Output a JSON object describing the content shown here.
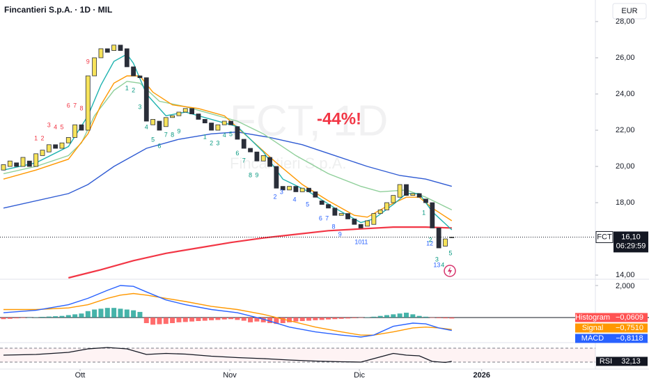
{
  "header": {
    "title": "Fincantieri S.p.A. · 1D · MIL",
    "currency": "EUR"
  },
  "chart_data": [
    {
      "type": "candlestick",
      "watermark_symbol": "FCT, 1D",
      "watermark_name": "Fincantieri S.p.A.",
      "annotation": "-44%!",
      "up_color": "#f7e35a",
      "down_color": "#2a2e39",
      "open": [
        19.8,
        20.0,
        20.2,
        20.0,
        20.3,
        20.0,
        20.6,
        20.8,
        21.2,
        21.0,
        21.3,
        21.6,
        22.3,
        22.0,
        25.0,
        26.0,
        26.5,
        26.4,
        26.7,
        26.5,
        25.5,
        25.0,
        24.9,
        22.3,
        22.5,
        22.2,
        22.7,
        22.8,
        23.0,
        23.2,
        22.9,
        22.6,
        22.4,
        22.0,
        22.3,
        22.5,
        22.2,
        21.5,
        21.0,
        20.8,
        20.3,
        20.5,
        20.0,
        18.9,
        18.7,
        18.9,
        18.6,
        18.8,
        18.6,
        18.1,
        17.9,
        17.7,
        17.3,
        17.4,
        17.1,
        16.8,
        16.7,
        16.8,
        17.4,
        17.6,
        18.0,
        18.3,
        19.0,
        18.4,
        18.5,
        18.2,
        18.0,
        16.6,
        15.6,
        16.1
      ],
      "close": [
        20.1,
        20.3,
        20.0,
        20.5,
        20.0,
        20.7,
        20.9,
        21.2,
        21.0,
        21.3,
        21.6,
        22.3,
        22.0,
        25.0,
        26.0,
        26.5,
        26.3,
        26.7,
        26.4,
        25.5,
        25.0,
        24.9,
        22.5,
        22.6,
        22.0,
        22.7,
        22.8,
        23.0,
        23.2,
        22.9,
        22.6,
        22.4,
        22.0,
        22.3,
        22.5,
        22.3,
        21.5,
        21.0,
        20.8,
        20.3,
        20.6,
        20.0,
        18.8,
        18.7,
        18.9,
        18.6,
        18.8,
        18.6,
        18.3,
        17.9,
        17.7,
        17.3,
        17.4,
        17.1,
        16.8,
        16.6,
        17.0,
        17.4,
        17.6,
        18.0,
        18.4,
        19.0,
        18.4,
        18.5,
        18.3,
        18.0,
        16.6,
        15.5,
        16.0,
        16.1
      ],
      "lines": [
        {
          "color": "#2f5bd3",
          "x": [
            0,
            10,
            13,
            17,
            22,
            27,
            32,
            36,
            41,
            46,
            51,
            56,
            61,
            65,
            69
          ],
          "values": [
            17.7,
            18.5,
            19.0,
            20.0,
            21.0,
            21.5,
            21.8,
            21.9,
            21.6,
            21.2,
            20.6,
            20.0,
            19.5,
            19.3,
            18.9
          ]
        },
        {
          "color": "#f23645",
          "x": [
            10,
            15,
            20,
            25,
            30,
            35,
            40,
            45,
            50,
            55,
            60,
            65,
            69
          ],
          "values": [
            13.85,
            14.3,
            14.8,
            15.2,
            15.5,
            15.8,
            16.05,
            16.25,
            16.45,
            16.55,
            16.65,
            16.65,
            16.6
          ]
        },
        {
          "color": "#8fcf9a",
          "x": [
            0,
            5,
            10,
            12,
            14,
            17,
            19,
            21,
            24,
            28,
            32,
            36,
            40,
            45,
            50,
            55,
            58,
            62,
            65,
            69
          ],
          "values": [
            19.6,
            20.0,
            20.6,
            21.3,
            22.8,
            24.2,
            24.7,
            24.6,
            23.6,
            23.3,
            22.9,
            22.5,
            21.8,
            20.6,
            19.6,
            18.9,
            18.6,
            18.7,
            18.3,
            17.6
          ]
        },
        {
          "color": "#ff9800",
          "x": [
            0,
            5,
            10,
            13,
            15,
            17,
            19,
            21,
            23,
            26,
            30,
            34,
            38,
            42,
            46,
            50,
            54,
            56,
            59,
            62,
            64,
            66,
            69
          ],
          "values": [
            19.3,
            19.8,
            20.4,
            21.8,
            23.4,
            24.6,
            25.0,
            25.0,
            24.1,
            23.4,
            23.2,
            22.8,
            21.5,
            20.2,
            19.0,
            18.1,
            17.3,
            17.2,
            17.8,
            18.3,
            18.3,
            17.7,
            17.0
          ]
        },
        {
          "color": "#1fb3b0",
          "x": [
            0,
            5,
            10,
            13,
            15,
            17,
            19,
            20,
            22,
            25,
            28,
            32,
            36,
            40,
            43,
            47,
            51,
            55,
            57,
            60,
            62,
            64,
            66,
            69
          ],
          "values": [
            19.8,
            20.2,
            21.1,
            22.8,
            24.5,
            25.8,
            26.2,
            25.7,
            24.0,
            22.8,
            23.0,
            22.6,
            22.2,
            20.8,
            19.3,
            18.6,
            17.7,
            16.9,
            17.1,
            17.9,
            18.5,
            18.5,
            17.5,
            16.5
          ]
        }
      ],
      "td_labels": [
        {
          "text": "1",
          "x": 5,
          "y": 21.54,
          "color": "#f23645"
        },
        {
          "text": "2",
          "x": 6,
          "y": 21.54,
          "color": "#f23645"
        },
        {
          "text": "3",
          "x": 7,
          "y": 22.27,
          "color": "#f23645"
        },
        {
          "text": "4",
          "x": 8,
          "y": 22.15,
          "color": "#f23645"
        },
        {
          "text": "5",
          "x": 9,
          "y": 22.15,
          "color": "#f23645"
        },
        {
          "text": "6",
          "x": 10,
          "y": 23.35,
          "color": "#f23645"
        },
        {
          "text": "7",
          "x": 11,
          "y": 23.35,
          "color": "#f23645"
        },
        {
          "text": "8",
          "x": 12,
          "y": 23.19,
          "color": "#f23645"
        },
        {
          "text": "9",
          "x": 13,
          "y": 25.77,
          "color": "#f23645"
        },
        {
          "text": "1",
          "x": 19,
          "y": 24.31,
          "color": "#089981"
        },
        {
          "text": "2",
          "x": 20,
          "y": 24.19,
          "color": "#089981"
        },
        {
          "text": "3",
          "x": 21,
          "y": 23.27,
          "color": "#089981"
        },
        {
          "text": "4",
          "x": 22,
          "y": 22.15,
          "color": "#089981"
        },
        {
          "text": "5",
          "x": 23,
          "y": 21.46,
          "color": "#089981"
        },
        {
          "text": "6",
          "x": 24,
          "y": 21.12,
          "color": "#089981"
        },
        {
          "text": "7",
          "x": 25,
          "y": 21.73,
          "color": "#089981"
        },
        {
          "text": "8",
          "x": 26,
          "y": 21.73,
          "color": "#089981"
        },
        {
          "text": "9",
          "x": 27,
          "y": 21.92,
          "color": "#089981"
        },
        {
          "text": "1",
          "x": 31,
          "y": 21.62,
          "color": "#089981"
        },
        {
          "text": "2",
          "x": 32,
          "y": 21.27,
          "color": "#089981"
        },
        {
          "text": "3",
          "x": 33,
          "y": 21.27,
          "color": "#089981"
        },
        {
          "text": "4",
          "x": 34,
          "y": 21.7,
          "color": "#089981"
        },
        {
          "text": "5",
          "x": 35,
          "y": 21.77,
          "color": "#089981"
        },
        {
          "text": "6",
          "x": 36,
          "y": 20.7,
          "color": "#089981"
        },
        {
          "text": "7",
          "x": 37,
          "y": 20.3,
          "color": "#089981"
        },
        {
          "text": "8",
          "x": 38,
          "y": 19.5,
          "color": "#089981"
        },
        {
          "text": "9",
          "x": 39,
          "y": 19.5,
          "color": "#089981"
        },
        {
          "text": "2",
          "x": 41.8,
          "y": 18.31,
          "color": "#2962ff"
        },
        {
          "text": "3",
          "x": 42.8,
          "y": 18.58,
          "color": "#2962ff"
        },
        {
          "text": "4",
          "x": 44.8,
          "y": 18.15,
          "color": "#2962ff"
        },
        {
          "text": "5",
          "x": 46.8,
          "y": 17.88,
          "color": "#2962ff"
        },
        {
          "text": "6",
          "x": 48.8,
          "y": 17.12,
          "color": "#2962ff"
        },
        {
          "text": "7",
          "x": 49.8,
          "y": 17.12,
          "color": "#2962ff"
        },
        {
          "text": "8",
          "x": 50.8,
          "y": 16.65,
          "color": "#2962ff"
        },
        {
          "text": "9",
          "x": 51.8,
          "y": 16.23,
          "color": "#2962ff"
        },
        {
          "text": "10",
          "x": 54.6,
          "y": 15.81,
          "color": "#2962ff"
        },
        {
          "text": "11",
          "x": 55.6,
          "y": 15.81,
          "color": "#2962ff"
        },
        {
          "text": "12",
          "x": 65.6,
          "y": 15.73,
          "color": "#2962ff"
        },
        {
          "text": "13",
          "x": 66.7,
          "y": 14.54,
          "color": "#2962ff"
        },
        {
          "text": "1",
          "x": 64.7,
          "y": 17.42,
          "color": "#089981"
        },
        {
          "text": "2",
          "x": 65.7,
          "y": 15.92,
          "color": "#089981"
        },
        {
          "text": "3",
          "x": 66.7,
          "y": 14.85,
          "color": "#089981"
        },
        {
          "text": "4",
          "x": 67.6,
          "y": 14.54,
          "color": "#089981"
        },
        {
          "text": "5",
          "x": 68.8,
          "y": 15.19,
          "color": "#089981"
        }
      ],
      "last_price": {
        "symbol": "FCT",
        "value": 16.1,
        "label": "16,10",
        "countdown": "06:29:59"
      },
      "xlim": [
        -0.536,
        91.1
      ],
      "xticks": [
        {
          "value": 11.79,
          "label": "Ott"
        },
        {
          "value": 34.83,
          "label": "Nov"
        },
        {
          "value": 54.77,
          "label": "Dic"
        },
        {
          "value": 73.6,
          "label": "2026"
        }
      ],
      "ylim": [
        13.81,
        29.19
      ],
      "yticks": [
        {
          "value": 14,
          "label": "14,00"
        },
        {
          "value": 16,
          "label": "16,00"
        },
        {
          "value": 18,
          "label": "18,00"
        },
        {
          "value": 20,
          "label": "20,00"
        },
        {
          "value": 22,
          "label": "22,00"
        },
        {
          "value": 24,
          "label": "24,00"
        },
        {
          "value": 26,
          "label": "26,00"
        },
        {
          "value": 28,
          "label": "28,00"
        }
      ]
    },
    {
      "type": "macd",
      "ylim": [
        -1.57,
        2.35
      ],
      "yticks": [
        {
          "value": 2,
          "label": "2,000"
        }
      ],
      "histogram": {
        "name": "Histogram",
        "colors": [
          "#26a69a",
          "#ff5252"
        ],
        "last_label": "−0,0609",
        "values": [
          -0.1,
          -0.08,
          -0.05,
          -0.03,
          0,
          0.02,
          0.04,
          0.06,
          0.08,
          0.1,
          0.15,
          0.2,
          0.25,
          0.4,
          0.5,
          0.55,
          0.6,
          0.6,
          0.55,
          0.5,
          0.45,
          0.35,
          -0.35,
          -0.45,
          -0.42,
          -0.4,
          -0.35,
          -0.3,
          -0.28,
          -0.25,
          -0.22,
          -0.2,
          -0.17,
          -0.15,
          -0.12,
          -0.1,
          -0.15,
          -0.2,
          -0.3,
          -0.25,
          -0.3,
          -0.35,
          -0.4,
          -0.35,
          -0.3,
          -0.25,
          -0.22,
          -0.2,
          -0.17,
          -0.15,
          -0.12,
          -0.1,
          -0.08,
          -0.06,
          -0.04,
          -0.02,
          0.02,
          0.05,
          0.1,
          0.15,
          0.2,
          0.25,
          0.3,
          0.2,
          0.1,
          0.05,
          -0.02,
          -0.04,
          -0.05,
          -0.0609
        ]
      },
      "series": [
        {
          "name": "Signal",
          "color": "#ff9800",
          "last_label": "−0,7510",
          "x": [
            0,
            5,
            10,
            13,
            16,
            18,
            20,
            22,
            25,
            28,
            32,
            36,
            40,
            44,
            48,
            52,
            55,
            57,
            60,
            63,
            65,
            67,
            69
          ],
          "values": [
            0.5,
            0.5,
            0.6,
            0.8,
            1.2,
            1.4,
            1.5,
            1.4,
            1.2,
            1.0,
            0.7,
            0.5,
            0.2,
            -0.2,
            -0.6,
            -0.9,
            -1.1,
            -1.1,
            -0.9,
            -0.65,
            -0.6,
            -0.65,
            -0.751
          ]
        },
        {
          "name": "MACD",
          "color": "#2962ff",
          "last_label": "−0,8118",
          "x": [
            0,
            5,
            10,
            13,
            16,
            18,
            20,
            22,
            25,
            28,
            32,
            36,
            40,
            44,
            48,
            52,
            55,
            57,
            60,
            63,
            65,
            67,
            69
          ],
          "values": [
            0.3,
            0.45,
            0.8,
            1.2,
            1.7,
            2.0,
            1.95,
            1.6,
            1.1,
            0.8,
            0.5,
            0.3,
            -0.1,
            -0.6,
            -0.9,
            -1.1,
            -1.22,
            -1.1,
            -0.55,
            -0.35,
            -0.4,
            -0.65,
            -0.8118
          ]
        }
      ]
    },
    {
      "type": "rsi",
      "name": "RSI",
      "color": "#131722",
      "last_label": "32,13",
      "ylim": [
        10,
        84
      ],
      "levels": [
        70,
        30
      ],
      "x": [
        0,
        5,
        10,
        13,
        16,
        19,
        22,
        25,
        28,
        32,
        36,
        40,
        44,
        48,
        52,
        55,
        57,
        60,
        62,
        64,
        66,
        68,
        69
      ],
      "values": [
        50,
        52,
        58,
        68,
        72,
        68,
        52,
        55,
        53,
        47,
        43,
        40,
        36,
        33,
        31,
        30,
        40,
        55,
        50,
        48,
        32,
        29,
        32.13
      ]
    }
  ]
}
